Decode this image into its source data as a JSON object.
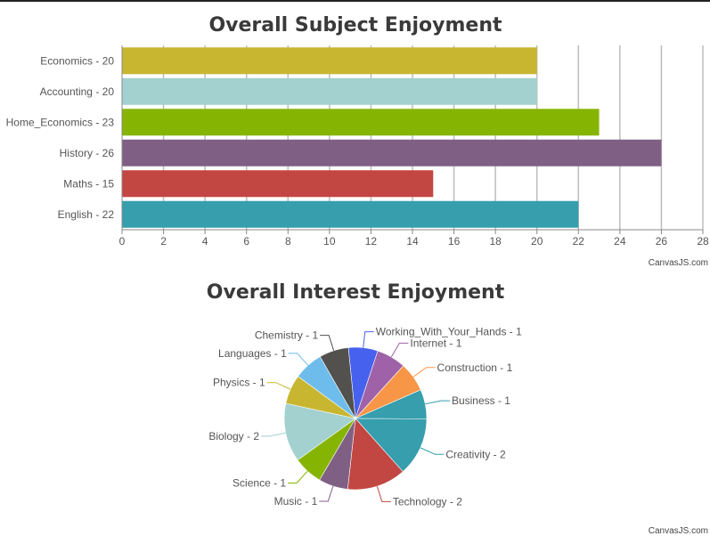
{
  "chart_data": [
    {
      "type": "bar",
      "orientation": "horizontal",
      "title": "Overall Subject Enjoyment",
      "categories": [
        "English - 22",
        "Maths - 15",
        "History - 26",
        "Home_Economics - 23",
        "Accounting - 20",
        "Economics - 20"
      ],
      "values": [
        22,
        15,
        26,
        23,
        20,
        20
      ],
      "colors": [
        "#369EAD",
        "#C24642",
        "#7F6084",
        "#86B402",
        "#A2D1CF",
        "#C8B631"
      ],
      "xlim": [
        0,
        28
      ],
      "xticks": [
        0,
        2,
        4,
        6,
        8,
        10,
        12,
        14,
        16,
        18,
        20,
        22,
        24,
        26,
        28
      ],
      "grid": true,
      "credit": "CanvasJS.com"
    },
    {
      "type": "pie",
      "title": "Overall Interest Enjoyment",
      "slices": [
        {
          "label": "Working_With_Your_Hands - 1",
          "value": 1,
          "color": "#4661EE"
        },
        {
          "label": "Internet - 1",
          "value": 1,
          "color": "#9F62A8"
        },
        {
          "label": "Construction - 1",
          "value": 1,
          "color": "#F79647"
        },
        {
          "label": "Business - 1",
          "value": 1,
          "color": "#369EAD"
        },
        {
          "label": "Creativity - 2",
          "value": 2,
          "color": "#369EAD"
        },
        {
          "label": "Technology - 2",
          "value": 2,
          "color": "#C24642"
        },
        {
          "label": "Music - 1",
          "value": 1,
          "color": "#7F6084"
        },
        {
          "label": "Science - 1",
          "value": 1,
          "color": "#86B402"
        },
        {
          "label": "Biology - 2",
          "value": 2,
          "color": "#A2D1CF"
        },
        {
          "label": "Physics - 1",
          "value": 1,
          "color": "#C8B631"
        },
        {
          "label": "Languages - 1",
          "value": 1,
          "color": "#6DBCEB"
        },
        {
          "label": "Chemistry - 1",
          "value": 1,
          "color": "#52514E"
        }
      ],
      "credit": "CanvasJS.com"
    }
  ]
}
